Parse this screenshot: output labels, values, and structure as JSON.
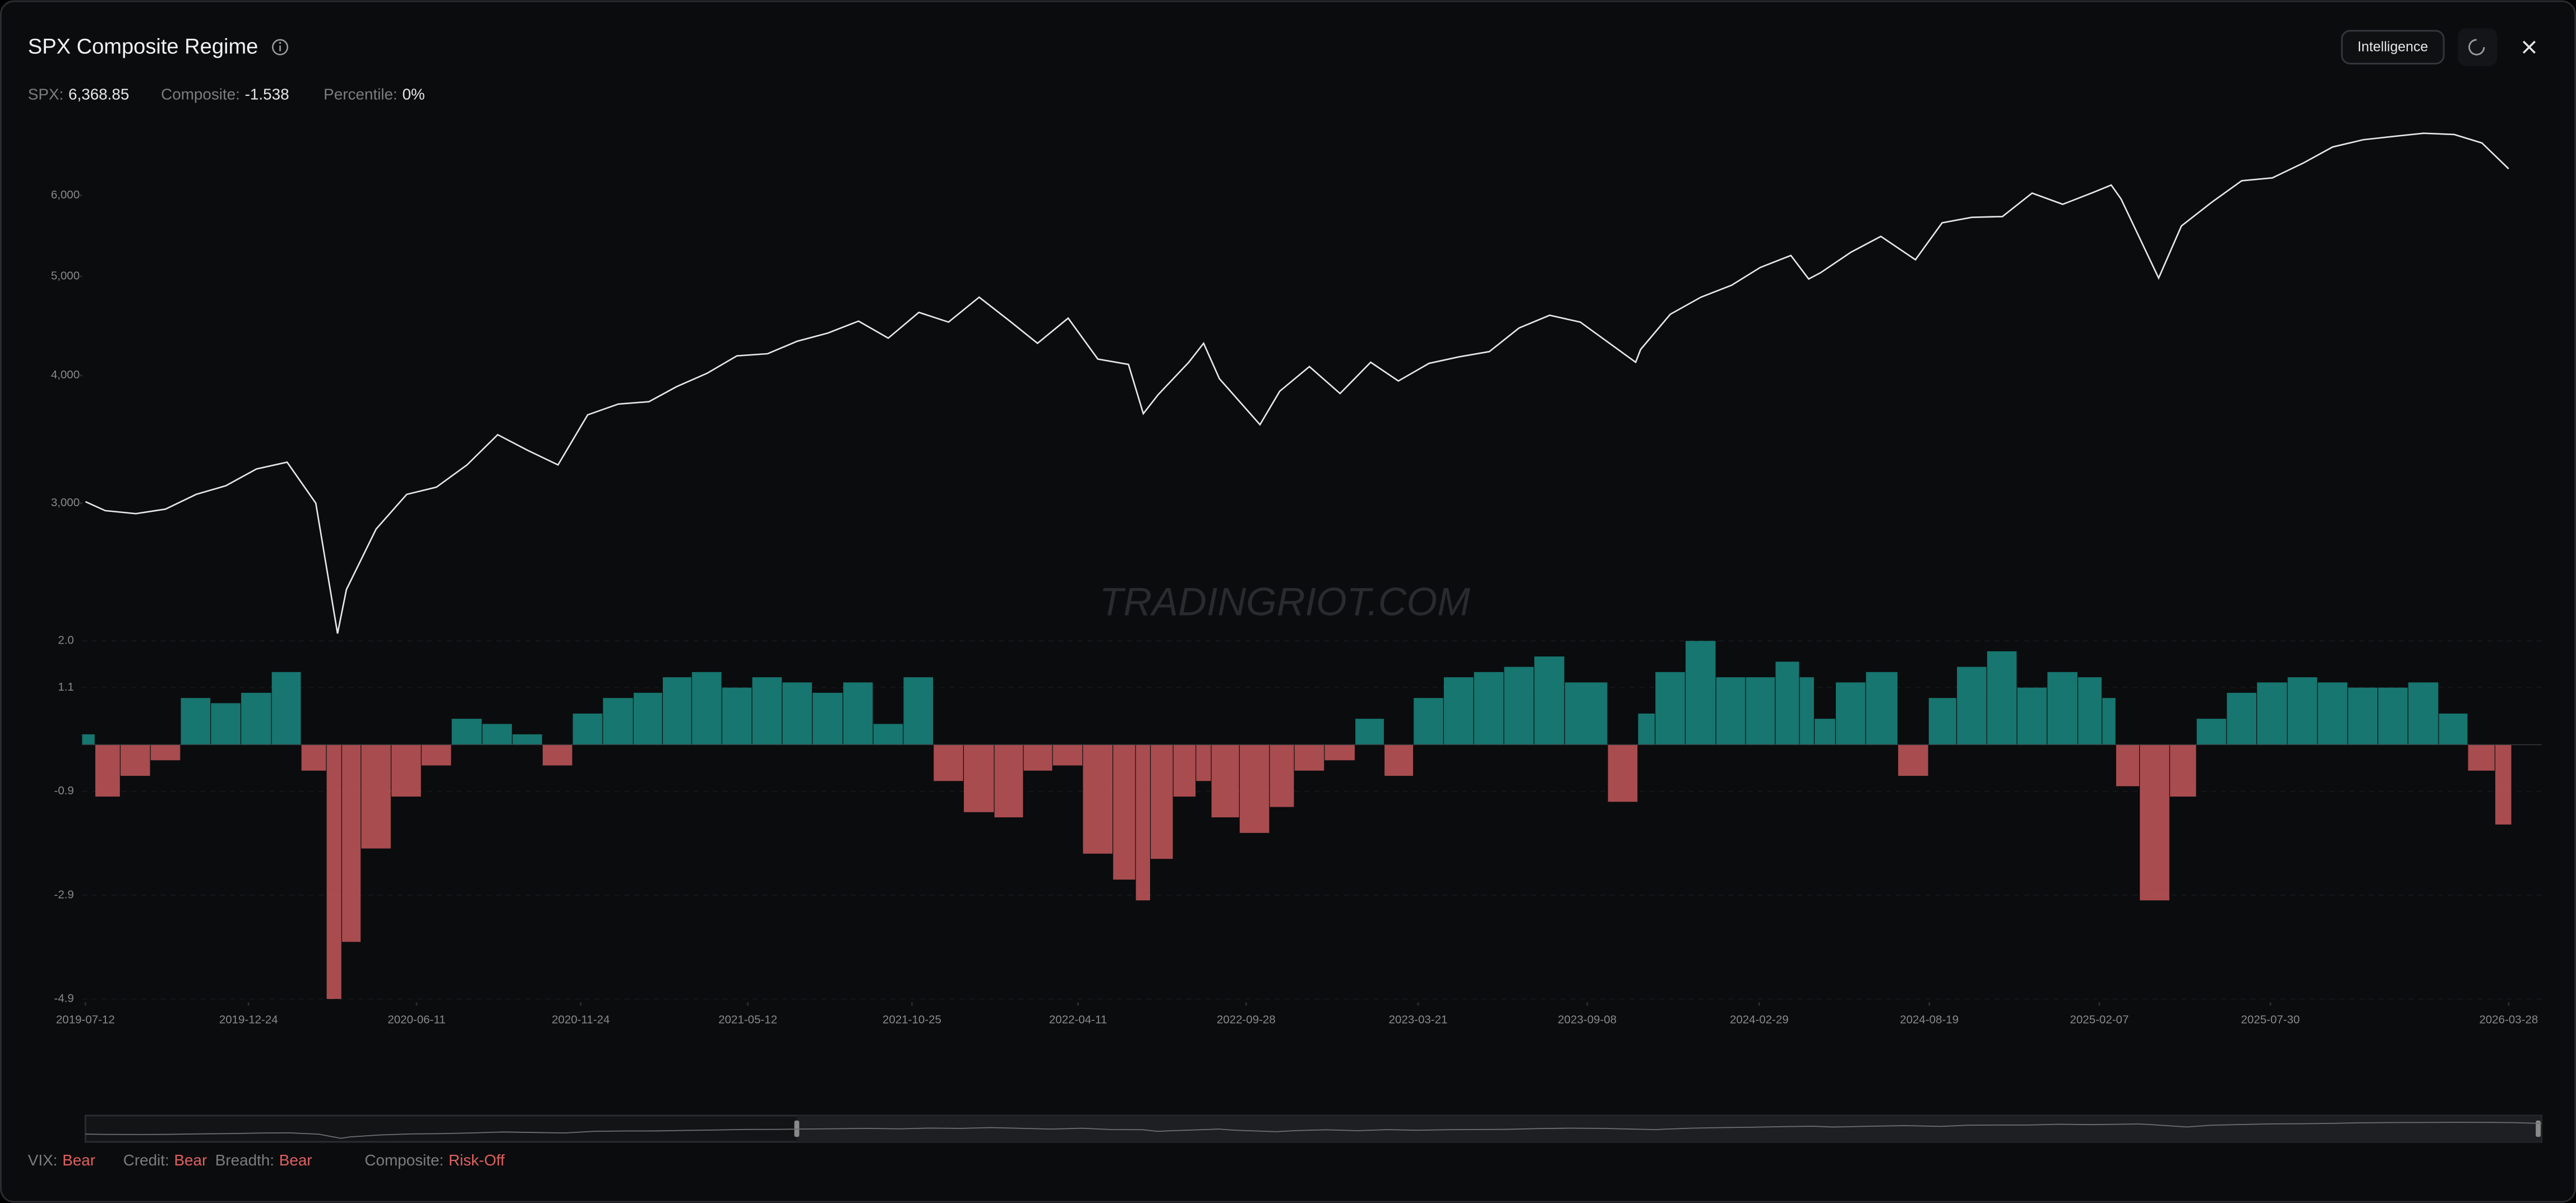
{
  "header": {
    "title": "SPX Composite Regime",
    "stats": [
      {
        "label": "SPX:",
        "value": "6,368.85"
      },
      {
        "label": "Composite:",
        "value": "-1.538"
      },
      {
        "label": "Percentile:",
        "value": "0%"
      }
    ],
    "button": "Intelligence"
  },
  "watermark": "TRADINGRIOT.COM",
  "chart_data": [
    {
      "type": "line",
      "x": [
        "2019-07-12",
        "2019-08-01",
        "2019-09-01",
        "2019-10-01",
        "2019-11-01",
        "2019-12-01",
        "2020-01-01",
        "2020-02-01",
        "2020-03-01",
        "2020-03-23",
        "2020-04-01",
        "2020-05-01",
        "2020-06-01",
        "2020-07-01",
        "2020-08-01",
        "2020-09-01",
        "2020-10-01",
        "2020-11-01",
        "2020-12-01",
        "2021-01-01",
        "2021-02-01",
        "2021-03-01",
        "2021-04-01",
        "2021-05-01",
        "2021-06-01",
        "2021-07-01",
        "2021-08-01",
        "2021-09-01",
        "2021-10-01",
        "2021-11-01",
        "2021-12-01",
        "2022-01-01",
        "2022-02-01",
        "2022-03-01",
        "2022-04-01",
        "2022-05-01",
        "2022-06-01",
        "2022-06-16",
        "2022-07-01",
        "2022-08-01",
        "2022-08-16",
        "2022-09-01",
        "2022-10-12",
        "2022-11-01",
        "2022-12-01",
        "2023-01-01",
        "2023-02-01",
        "2023-03-01",
        "2023-04-01",
        "2023-05-01",
        "2023-06-01",
        "2023-07-01",
        "2023-08-01",
        "2023-09-01",
        "2023-10-27",
        "2023-11-01",
        "2023-12-01",
        "2024-01-01",
        "2024-02-01",
        "2024-03-01",
        "2024-04-01",
        "2024-04-19",
        "2024-05-01",
        "2024-06-01",
        "2024-07-01",
        "2024-08-05",
        "2024-09-01",
        "2024-10-01",
        "2024-11-01",
        "2024-12-01",
        "2025-01-01",
        "2025-02-01",
        "2025-02-19",
        "2025-03-01",
        "2025-04-08",
        "2025-05-01",
        "2025-06-01",
        "2025-07-01",
        "2025-08-01",
        "2025-09-01",
        "2025-10-01",
        "2025-11-01",
        "2025-12-01",
        "2026-01-01",
        "2026-02-01",
        "2026-03-01",
        "2026-03-28"
      ],
      "values": [
        3010,
        2950,
        2930,
        2960,
        3060,
        3120,
        3240,
        3290,
        3000,
        2237,
        2470,
        2830,
        3060,
        3110,
        3270,
        3500,
        3380,
        3270,
        3660,
        3750,
        3770,
        3900,
        4020,
        4180,
        4200,
        4320,
        4400,
        4520,
        4350,
        4610,
        4510,
        4770,
        4520,
        4300,
        4550,
        4150,
        4100,
        3670,
        3830,
        4120,
        4300,
        3970,
        3580,
        3860,
        4080,
        3840,
        4120,
        3950,
        4110,
        4170,
        4220,
        4450,
        4580,
        4510,
        4120,
        4240,
        4590,
        4770,
        4900,
        5100,
        5240,
        4970,
        5040,
        5280,
        5470,
        5190,
        5640,
        5710,
        5720,
        6030,
        5880,
        6040,
        6140,
        5950,
        4980,
        5600,
        5910,
        6200,
        6240,
        6450,
        6690,
        6800,
        6850,
        6900,
        6880,
        6750,
        6369
      ],
      "color": "#e8e8e8",
      "log_scale": true,
      "xlim": [
        "2019-07-12",
        "2026-03-28"
      ],
      "ylim": [
        2200,
        7000
      ],
      "yticks": [
        {
          "value": 3000,
          "label": "3,000"
        },
        {
          "value": 4000,
          "label": "4,000"
        },
        {
          "value": 5000,
          "label": "5,000"
        },
        {
          "value": 6000,
          "label": "6,000"
        }
      ]
    },
    {
      "type": "bar",
      "x": [
        "2019-07-12",
        "2019-08-01",
        "2019-09-01",
        "2019-10-01",
        "2019-11-01",
        "2019-12-01",
        "2020-01-01",
        "2020-02-01",
        "2020-03-01",
        "2020-03-23",
        "2020-04-01",
        "2020-05-01",
        "2020-06-01",
        "2020-07-01",
        "2020-08-01",
        "2020-09-01",
        "2020-10-01",
        "2020-11-01",
        "2020-12-01",
        "2021-01-01",
        "2021-02-01",
        "2021-03-01",
        "2021-04-01",
        "2021-05-01",
        "2021-06-01",
        "2021-07-01",
        "2021-08-01",
        "2021-09-01",
        "2021-10-01",
        "2021-11-01",
        "2021-12-01",
        "2022-01-01",
        "2022-02-01",
        "2022-03-01",
        "2022-04-01",
        "2022-05-01",
        "2022-06-01",
        "2022-06-16",
        "2022-07-01",
        "2022-08-01",
        "2022-08-16",
        "2022-09-01",
        "2022-10-12",
        "2022-11-01",
        "2022-12-01",
        "2023-01-01",
        "2023-02-01",
        "2023-03-01",
        "2023-04-01",
        "2023-05-01",
        "2023-06-01",
        "2023-07-01",
        "2023-08-01",
        "2023-09-01",
        "2023-10-27",
        "2023-11-01",
        "2023-12-01",
        "2024-01-01",
        "2024-02-01",
        "2024-03-01",
        "2024-04-01",
        "2024-04-19",
        "2024-05-01",
        "2024-06-01",
        "2024-07-01",
        "2024-08-05",
        "2024-09-01",
        "2024-10-01",
        "2024-11-01",
        "2024-12-01",
        "2025-01-01",
        "2025-02-01",
        "2025-02-19",
        "2025-03-01",
        "2025-04-08",
        "2025-05-01",
        "2025-06-01",
        "2025-07-01",
        "2025-08-01",
        "2025-09-01",
        "2025-10-01",
        "2025-11-01",
        "2025-12-01",
        "2026-01-01",
        "2026-02-01",
        "2026-03-01",
        "2026-03-28"
      ],
      "values": [
        0.2,
        -1.0,
        -0.6,
        -0.3,
        0.9,
        0.8,
        1.0,
        1.4,
        -0.5,
        -4.9,
        -3.8,
        -2.0,
        -1.0,
        -0.4,
        0.5,
        0.4,
        0.2,
        -0.4,
        0.6,
        0.9,
        1.0,
        1.3,
        1.4,
        1.1,
        1.3,
        1.2,
        1.0,
        1.2,
        0.4,
        1.3,
        -0.7,
        -1.3,
        -1.4,
        -0.5,
        -0.4,
        -2.1,
        -2.6,
        -3.0,
        -2.2,
        -1.0,
        -0.7,
        -1.4,
        -1.7,
        -1.2,
        -0.5,
        -0.3,
        0.5,
        -0.6,
        0.9,
        1.3,
        1.4,
        1.5,
        1.7,
        1.2,
        -1.1,
        0.6,
        1.4,
        2.0,
        1.3,
        1.3,
        1.6,
        1.3,
        0.5,
        1.2,
        1.4,
        -0.6,
        0.9,
        1.5,
        1.8,
        1.1,
        1.4,
        1.3,
        0.9,
        -0.8,
        -3.0,
        -1.0,
        0.5,
        1.0,
        1.2,
        1.3,
        1.2,
        1.1,
        1.1,
        1.2,
        0.6,
        -0.5,
        -1.538
      ],
      "positive_color": "#1a8a80",
      "negative_color": "#c4585a",
      "xlim": [
        "2019-07-12",
        "2026-03-28"
      ],
      "xticks": [
        "2019-07-12",
        "2019-12-24",
        "2020-06-11",
        "2020-11-24",
        "2021-05-12",
        "2021-10-25",
        "2022-04-11",
        "2022-09-28",
        "2023-03-21",
        "2023-09-08",
        "2024-02-29",
        "2024-08-19",
        "2025-02-07",
        "2025-07-30",
        "2026-03-28"
      ],
      "ylim": [
        -4.9,
        2
      ],
      "yticks": [
        {
          "value": 2,
          "label": "2.0"
        },
        1.1,
        -0.9,
        -2.9,
        -4.9
      ],
      "grid": true
    }
  ],
  "footer": {
    "statuses": [
      {
        "label": "VIX:",
        "value": "Bear"
      },
      {
        "label": "Credit:",
        "value": "Bear"
      },
      {
        "label": "Breadth:",
        "value": "Bear"
      },
      {
        "label": "Composite:",
        "value": "Risk-Off"
      }
    ]
  }
}
